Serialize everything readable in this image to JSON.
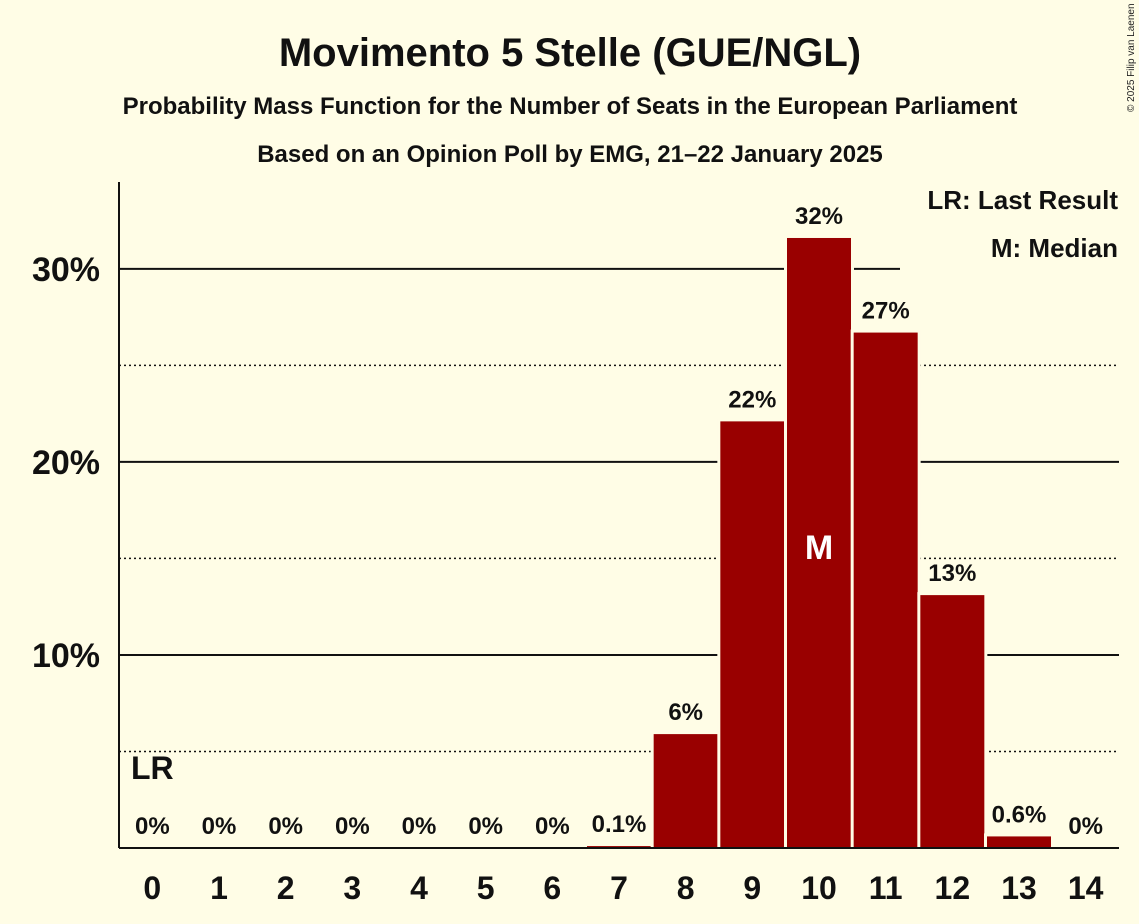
{
  "chart_data": {
    "type": "bar",
    "title": "Movimento 5 Stelle (GUE/NGL)",
    "subtitle": "Probability Mass Function for the Number of Seats in the European Parliament",
    "subtitle2": "Based on an Opinion Poll by EMG, 21–22 January 2025",
    "categories": [
      "0",
      "1",
      "2",
      "3",
      "4",
      "5",
      "6",
      "7",
      "8",
      "9",
      "10",
      "11",
      "12",
      "13",
      "14"
    ],
    "values": [
      0,
      0,
      0,
      0,
      0,
      0,
      0,
      0.1,
      5.9,
      22.1,
      31.6,
      26.7,
      13.1,
      0.6,
      0
    ],
    "data_labels": [
      "0%",
      "0%",
      "0%",
      "0%",
      "0%",
      "0%",
      "0%",
      "0.1%",
      "6%",
      "22%",
      "32%",
      "27%",
      "13%",
      "0.6%",
      "0%"
    ],
    "ylim": [
      0,
      34.5
    ],
    "yticks": [
      {
        "value": 10,
        "label": "10%"
      },
      {
        "value": 20,
        "label": "20%"
      },
      {
        "value": 30,
        "label": "30%"
      }
    ],
    "dotted_gridlines": [
      5,
      15,
      25
    ],
    "bar_color": "#990000",
    "median_seat_index": 10,
    "median_marker": "M",
    "last_result_seat_index": 0,
    "last_result_marker": "LR",
    "legend": [
      "LR: Last Result",
      "M: Median"
    ],
    "copyright": "© 2025 Filip van Laenen"
  }
}
